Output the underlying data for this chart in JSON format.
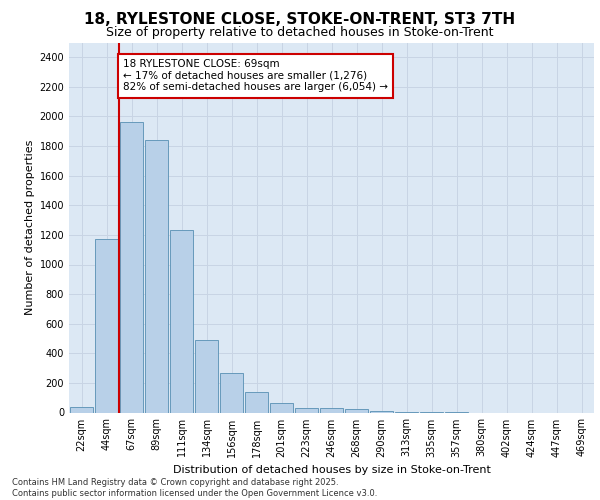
{
  "title_line1": "18, RYLESTONE CLOSE, STOKE-ON-TRENT, ST3 7TH",
  "title_line2": "Size of property relative to detached houses in Stoke-on-Trent",
  "xlabel": "Distribution of detached houses by size in Stoke-on-Trent",
  "ylabel": "Number of detached properties",
  "annotation_title": "18 RYLESTONE CLOSE: 69sqm",
  "annotation_line1": "← 17% of detached houses are smaller (1,276)",
  "annotation_line2": "82% of semi-detached houses are larger (6,054) →",
  "footer_line1": "Contains HM Land Registry data © Crown copyright and database right 2025.",
  "footer_line2": "Contains public sector information licensed under the Open Government Licence v3.0.",
  "bar_color": "#b8d0e8",
  "bar_edge_color": "#6699bb",
  "grid_color": "#c8d4e4",
  "annotation_box_edge_color": "#cc0000",
  "vline_color": "#cc0000",
  "bg_color": "#dce8f4",
  "fig_bg_color": "#ffffff",
  "categories": [
    "22sqm",
    "44sqm",
    "67sqm",
    "89sqm",
    "111sqm",
    "134sqm",
    "156sqm",
    "178sqm",
    "201sqm",
    "223sqm",
    "246sqm",
    "268sqm",
    "290sqm",
    "313sqm",
    "335sqm",
    "357sqm",
    "380sqm",
    "402sqm",
    "424sqm",
    "447sqm",
    "469sqm"
  ],
  "values": [
    35,
    1175,
    1960,
    1840,
    1230,
    490,
    270,
    140,
    65,
    30,
    30,
    25,
    10,
    2,
    1,
    1,
    0,
    0,
    0,
    0,
    0
  ],
  "vline_bin_index": 2,
  "ylim_max": 2500,
  "ytick_step": 200,
  "title_fontsize": 11,
  "subtitle_fontsize": 9,
  "ylabel_fontsize": 8,
  "xlabel_fontsize": 8,
  "tick_fontsize": 7,
  "ann_fontsize": 7.5,
  "footer_fontsize": 6
}
